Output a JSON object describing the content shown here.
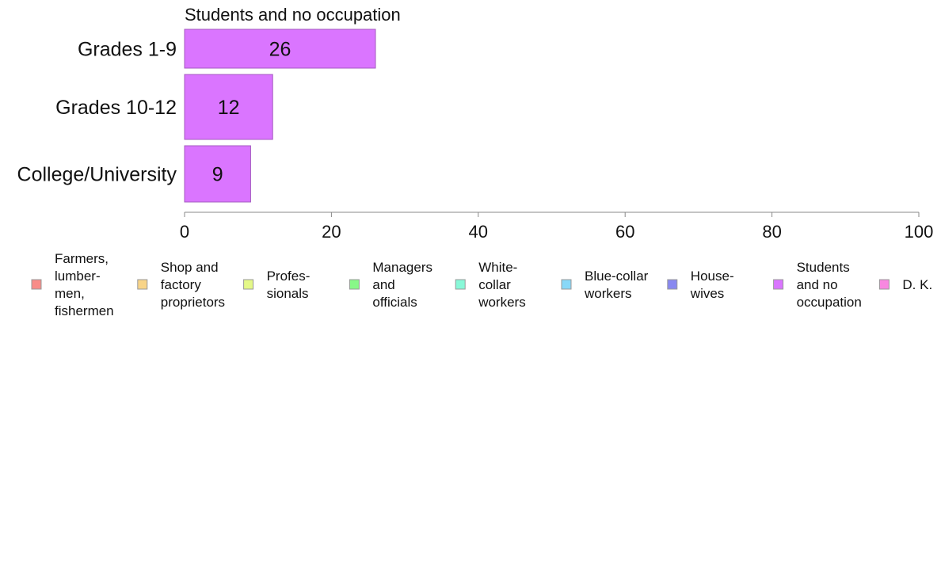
{
  "chart_data": {
    "type": "bar",
    "orientation": "horizontal",
    "title": "Students and no occupation",
    "categories": [
      "Grades 1-9",
      "Grades 10-12",
      "College/University"
    ],
    "series": [
      {
        "name": "Students and no occupation",
        "values": [
          26,
          12,
          9
        ],
        "color": "#DA75FF"
      }
    ],
    "xlim": [
      0,
      100
    ],
    "xticks": [
      "0",
      "20",
      "40",
      "60",
      "80",
      "100"
    ],
    "grid": false,
    "legend_position": "bottom",
    "legend": [
      {
        "lines": [
          "Farmers,",
          "lumber-",
          "men,",
          "fishermen"
        ],
        "color": "#F88C88"
      },
      {
        "lines": [
          "Shop and",
          "factory",
          "proprietors"
        ],
        "color": "#F8D488"
      },
      {
        "lines": [
          "Profes-",
          "sionals"
        ],
        "color": "#E4F888"
      },
      {
        "lines": [
          "Managers",
          "and",
          "officials"
        ],
        "color": "#88F888"
      },
      {
        "lines": [
          "White-",
          "collar",
          "workers"
        ],
        "color": "#88F8D8"
      },
      {
        "lines": [
          "Blue-collar",
          "workers"
        ],
        "color": "#88D8F8"
      },
      {
        "lines": [
          "House-",
          "wives"
        ],
        "color": "#8888F0"
      },
      {
        "lines": [
          "Students",
          "and no",
          "occupation"
        ],
        "color": "#DA75FF"
      },
      {
        "lines": [
          "D. K."
        ],
        "color": "#F888E0"
      }
    ]
  }
}
